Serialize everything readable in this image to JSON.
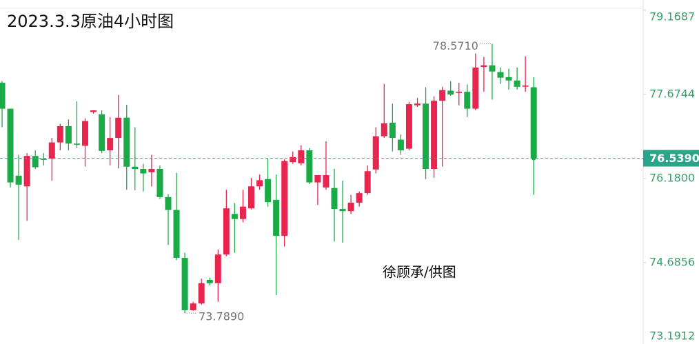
{
  "chart_data": {
    "type": "candlestick",
    "title": "2023.3.3原油4小时图",
    "annotation": "徐顾承/供图",
    "ylim": [
      73.24,
      79.35
    ],
    "yticks": [
      79.1687,
      77.6744,
      {
        "value": 76.18,
        "label": "76.1800"
      },
      74.6856,
      73.1912
    ],
    "last_price": {
      "value": 76.539,
      "label": "76.5390"
    },
    "high_label": {
      "value": 78.571,
      "label": "78.5710"
    },
    "low_label": {
      "value": 73.789,
      "label": "73.7890"
    },
    "up_color": "#e8254f",
    "down_color": "#1aab47",
    "last_color": "#2aa58a",
    "open": [
      77.88,
      77.42,
      76.23,
      76.04,
      76.58,
      76.53,
      76.53,
      76.82,
      77.11,
      76.8,
      76.76,
      77.36,
      77.32,
      76.68,
      76.9,
      77.26,
      76.39,
      76.35,
      76.29,
      76.35,
      75.85,
      75.62,
      74.77,
      73.84,
      73.96,
      74.38,
      74.32,
      74.83,
      75.55,
      75.46,
      75.65,
      76.04,
      76.17,
      75.8,
      75.16,
      76.47,
      76.45,
      76.68,
      76.11,
      76.02,
      76.01,
      75.64,
      75.6,
      75.75,
      75.92,
      76.34,
      76.93,
      77.17,
      76.87,
      76.71,
      77.48,
      77.51,
      76.35,
      77.56,
      77.74,
      77.7,
      77.72,
      77.42,
      78.16,
      78.19,
      78.07,
      77.98,
      77.92,
      77.81,
      77.8
    ],
    "high": [
      77.91,
      77.42,
      76.6,
      76.63,
      76.68,
      76.63,
      76.9,
      77.15,
      77.23,
      77.55,
      77.25,
      77.39,
      77.39,
      77.27,
      77.66,
      77.49,
      77.09,
      76.44,
      76.6,
      76.41,
      75.9,
      76.28,
      74.86,
      73.99,
      74.4,
      74.42,
      74.92,
      75.98,
      75.74,
      75.98,
      76.19,
      76.25,
      76.53,
      76.25,
      76.52,
      76.66,
      76.77,
      76.72,
      76.24,
      76.84,
      76.35,
      76.14,
      75.89,
      75.95,
      76.41,
      77.09,
      77.86,
      77.51,
      76.96,
      77.54,
      77.61,
      77.8,
      77.64,
      77.81,
      77.91,
      77.88,
      77.85,
      78.4,
      78.34,
      78.571,
      78.15,
      78.13,
      78.15,
      78.35,
      77.98
    ],
    "low": [
      77.09,
      76.02,
      75.09,
      75.43,
      76.35,
      76.41,
      76.14,
      76.68,
      76.68,
      76.72,
      76.39,
      77.33,
      76.63,
      76.41,
      76.36,
      75.98,
      75.97,
      75.95,
      76.04,
      75.82,
      75.0,
      74.73,
      73.789,
      73.83,
      73.94,
      74.28,
      73.99,
      74.8,
      74.86,
      75.4,
      75.63,
      75.98,
      75.68,
      74.11,
      74.97,
      76.44,
      76.41,
      76.08,
      75.71,
      75.98,
      75.06,
      75.04,
      75.55,
      75.68,
      75.89,
      76.27,
      76.9,
      76.66,
      76.6,
      76.68,
      77.45,
      76.17,
      76.19,
      76.39,
      77.65,
      77.48,
      77.27,
      77.39,
      77.72,
      77.58,
      77.86,
      77.76,
      77.76,
      77.72,
      75.89
    ],
    "close": [
      77.42,
      76.11,
      76.07,
      76.58,
      76.38,
      76.51,
      76.82,
      77.11,
      76.8,
      76.78,
      77.2,
      77.39,
      76.67,
      76.9,
      77.26,
      76.39,
      76.35,
      76.27,
      76.35,
      75.85,
      75.62,
      74.77,
      73.84,
      73.96,
      74.32,
      74.32,
      74.83,
      75.65,
      75.46,
      75.68,
      76.04,
      76.15,
      75.76,
      75.16,
      76.49,
      76.56,
      76.68,
      76.11,
      76.24,
      76.24,
      75.64,
      75.6,
      75.75,
      75.92,
      76.31,
      76.93,
      77.16,
      76.9,
      76.68,
      77.5,
      77.51,
      76.35,
      77.56,
      77.75,
      77.67,
      77.72,
      77.42,
      78.15,
      78.19,
      78.08,
      77.97,
      77.92,
      77.81,
      77.83,
      76.539
    ]
  }
}
